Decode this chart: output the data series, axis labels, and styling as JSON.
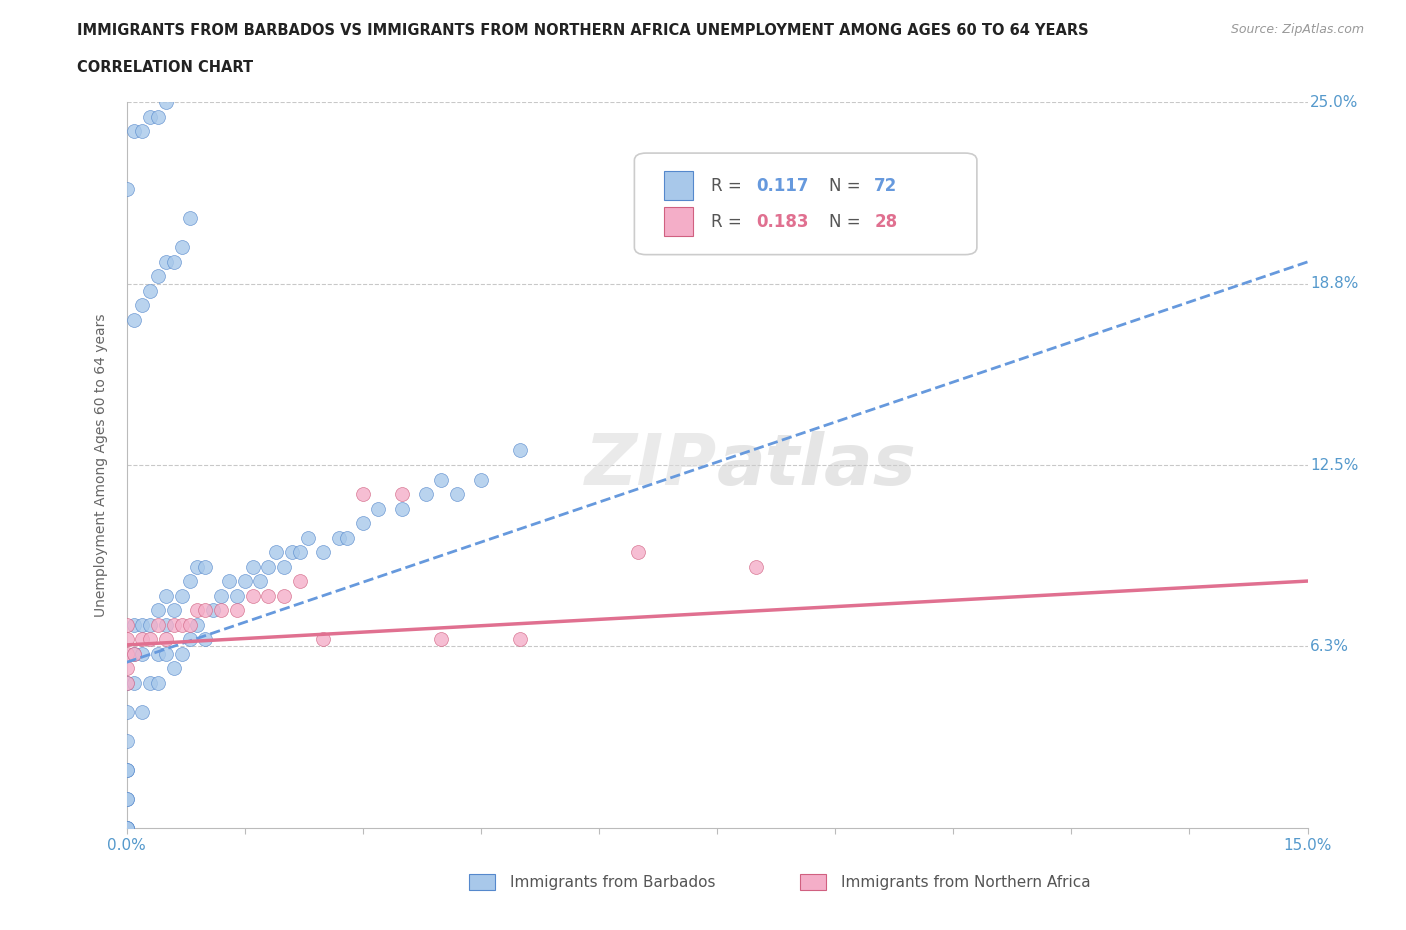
{
  "title_line1": "IMMIGRANTS FROM BARBADOS VS IMMIGRANTS FROM NORTHERN AFRICA UNEMPLOYMENT AMONG AGES 60 TO 64 YEARS",
  "title_line2": "CORRELATION CHART",
  "source": "Source: ZipAtlas.com",
  "ylabel": "Unemployment Among Ages 60 to 64 years",
  "xlim": [
    0.0,
    0.15
  ],
  "ylim": [
    0.0,
    0.25
  ],
  "ytick_positions": [
    0.0,
    0.0625,
    0.125,
    0.1875,
    0.25
  ],
  "ytick_labels": [
    "",
    "6.3%",
    "12.5%",
    "18.8%",
    "25.0%"
  ],
  "color_barbados": "#a8c8ea",
  "color_barbados_dark": "#5588cc",
  "color_barbados_line": "#6699dd",
  "color_na": "#f4aec8",
  "color_na_dark": "#d06080",
  "color_na_line": "#e07090",
  "color_axis_labels": "#5599cc",
  "barbados_x": [
    0.0,
    0.0,
    0.0,
    0.0,
    0.0,
    0.0,
    0.0,
    0.0,
    0.0,
    0.0,
    0.001,
    0.001,
    0.001,
    0.002,
    0.002,
    0.002,
    0.003,
    0.003,
    0.004,
    0.004,
    0.004,
    0.005,
    0.005,
    0.005,
    0.006,
    0.006,
    0.007,
    0.007,
    0.008,
    0.008,
    0.009,
    0.009,
    0.01,
    0.01,
    0.011,
    0.012,
    0.013,
    0.014,
    0.015,
    0.016,
    0.017,
    0.018,
    0.019,
    0.02,
    0.021,
    0.022,
    0.023,
    0.025,
    0.027,
    0.028,
    0.03,
    0.032,
    0.035,
    0.038,
    0.04,
    0.042,
    0.045,
    0.05,
    0.001,
    0.002,
    0.003,
    0.004,
    0.005,
    0.006,
    0.007,
    0.008,
    0.0,
    0.001,
    0.002,
    0.003,
    0.004,
    0.005
  ],
  "barbados_y": [
    0.0,
    0.0,
    0.0,
    0.01,
    0.01,
    0.02,
    0.02,
    0.03,
    0.04,
    0.05,
    0.05,
    0.06,
    0.07,
    0.04,
    0.06,
    0.07,
    0.05,
    0.07,
    0.05,
    0.06,
    0.075,
    0.06,
    0.07,
    0.08,
    0.055,
    0.075,
    0.06,
    0.08,
    0.065,
    0.085,
    0.07,
    0.09,
    0.065,
    0.09,
    0.075,
    0.08,
    0.085,
    0.08,
    0.085,
    0.09,
    0.085,
    0.09,
    0.095,
    0.09,
    0.095,
    0.095,
    0.1,
    0.095,
    0.1,
    0.1,
    0.105,
    0.11,
    0.11,
    0.115,
    0.12,
    0.115,
    0.12,
    0.13,
    0.175,
    0.18,
    0.185,
    0.19,
    0.195,
    0.195,
    0.2,
    0.21,
    0.22,
    0.24,
    0.24,
    0.245,
    0.245,
    0.25
  ],
  "northern_africa_x": [
    0.0,
    0.0,
    0.0,
    0.0,
    0.0,
    0.001,
    0.002,
    0.003,
    0.004,
    0.005,
    0.006,
    0.007,
    0.008,
    0.009,
    0.01,
    0.012,
    0.014,
    0.016,
    0.018,
    0.02,
    0.022,
    0.025,
    0.03,
    0.035,
    0.04,
    0.05,
    0.065,
    0.08
  ],
  "northern_africa_y": [
    0.05,
    0.055,
    0.06,
    0.065,
    0.07,
    0.06,
    0.065,
    0.065,
    0.07,
    0.065,
    0.07,
    0.07,
    0.07,
    0.075,
    0.075,
    0.075,
    0.075,
    0.08,
    0.08,
    0.08,
    0.085,
    0.065,
    0.115,
    0.115,
    0.065,
    0.065,
    0.095,
    0.09
  ],
  "trend_barbados_x0": 0.0,
  "trend_barbados_y0": 0.057,
  "trend_barbados_x1": 0.15,
  "trend_barbados_y1": 0.195,
  "trend_na_x0": 0.0,
  "trend_na_y0": 0.063,
  "trend_na_x1": 0.15,
  "trend_na_y1": 0.085
}
